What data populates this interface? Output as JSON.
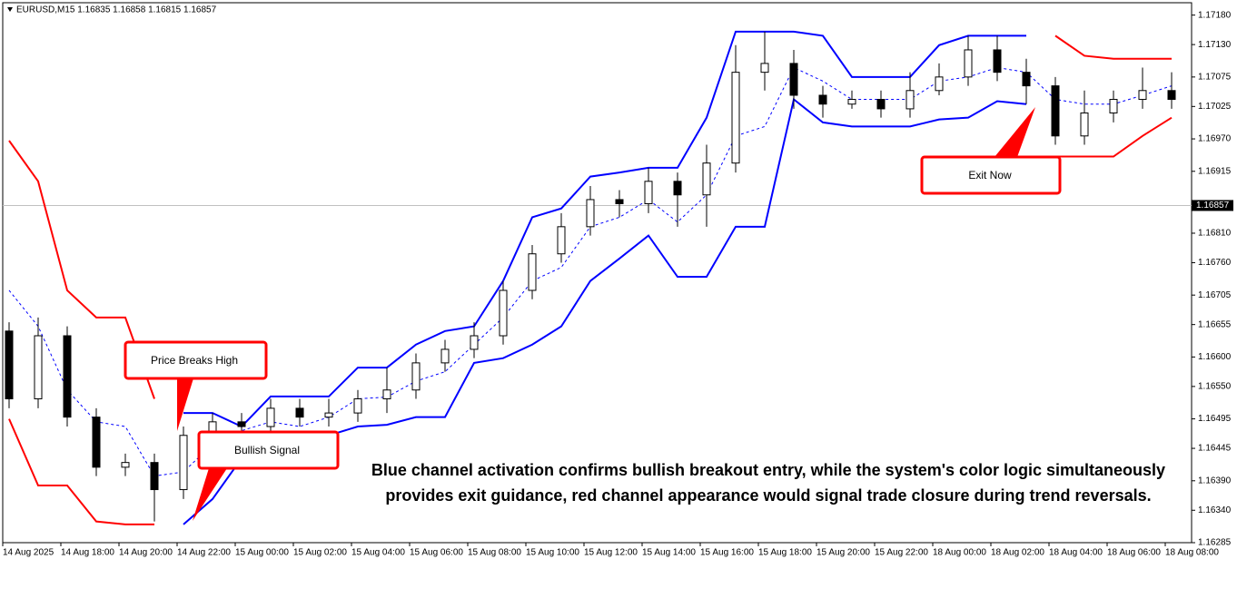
{
  "chart_data": {
    "type": "candlestick",
    "title": "EURUSD,M15  1.16835 1.16858 1.16815 1.16857",
    "x_labels": [
      "14 Aug 2025",
      "14 Aug 18:00",
      "14 Aug 20:00",
      "14 Aug 22:00",
      "15 Aug 00:00",
      "15 Aug 02:00",
      "15 Aug 04:00",
      "15 Aug 06:00",
      "15 Aug 08:00",
      "15 Aug 10:00",
      "15 Aug 12:00",
      "15 Aug 14:00",
      "15 Aug 16:00",
      "15 Aug 18:00",
      "15 Aug 20:00",
      "15 Aug 22:00",
      "18 Aug 00:00",
      "18 Aug 02:00",
      "18 Aug 04:00",
      "18 Aug 06:00",
      "18 Aug 08:00"
    ],
    "ylim": [
      1.16285,
      1.17201
    ],
    "yticks": [
      {
        "value": 1.1718,
        "label": "1.17180"
      },
      {
        "value": 1.1713,
        "label": "1.17130"
      },
      1.17075,
      1.17025,
      {
        "value": 1.1697,
        "label": "1.16970"
      },
      1.16915,
      {
        "value": 1.1681,
        "label": "1.16810"
      },
      {
        "value": 1.1676,
        "label": "1.16760"
      },
      1.16705,
      1.16655,
      {
        "value": 1.166,
        "label": "1.16600"
      },
      {
        "value": 1.1655,
        "label": "1.16550"
      },
      1.16495,
      1.16445,
      {
        "value": 1.1639,
        "label": "1.16390"
      },
      {
        "value": 1.1634,
        "label": "1.16340"
      },
      1.16285
    ],
    "current_price": 1.16857,
    "open": [
      1.16644,
      1.16529,
      1.16636,
      1.16498,
      1.16413,
      1.16421,
      1.16375,
      1.16467,
      1.1649,
      1.16482,
      1.16513,
      1.16498,
      1.16505,
      1.16529,
      1.16544,
      1.1659,
      1.16613,
      1.16636,
      1.16713,
      1.16775,
      1.16821,
      1.16867,
      1.1686,
      1.16898,
      1.16875,
      1.16929,
      1.17083,
      1.17098,
      1.17044,
      1.17029,
      1.17037,
      1.17021,
      1.17052,
      1.17075,
      1.17121,
      1.17083,
      1.1706,
      1.16975,
      1.17014,
      1.17037,
      1.17052
    ],
    "high": [
      1.16659,
      1.16667,
      1.16652,
      1.16513,
      1.16436,
      1.16436,
      1.16482,
      1.16505,
      1.16505,
      1.16529,
      1.16529,
      1.16529,
      1.16544,
      1.16582,
      1.16606,
      1.16629,
      1.16659,
      1.16729,
      1.1679,
      1.16844,
      1.1689,
      1.16883,
      1.16921,
      1.16913,
      1.1696,
      1.17129,
      1.17152,
      1.17121,
      1.1706,
      1.17052,
      1.17052,
      1.17083,
      1.17098,
      1.17145,
      1.17145,
      1.17106,
      1.17075,
      1.17052,
      1.17052,
      1.17091,
      1.17083
    ],
    "low": [
      1.16513,
      1.16513,
      1.16482,
      1.16398,
      1.16398,
      1.16321,
      1.16359,
      1.16452,
      1.16467,
      1.16467,
      1.16482,
      1.16482,
      1.1649,
      1.16505,
      1.16529,
      1.16575,
      1.16598,
      1.16621,
      1.16698,
      1.1676,
      1.16806,
      1.16837,
      1.16844,
      1.16821,
      1.16821,
      1.16913,
      1.17052,
      1.17021,
      1.17006,
      1.17021,
      1.17006,
      1.17006,
      1.17044,
      1.1706,
      1.17068,
      1.17029,
      1.1696,
      1.1696,
      1.16998,
      1.17021,
      1.17021
    ],
    "close": [
      1.16529,
      1.16636,
      1.16498,
      1.16413,
      1.16421,
      1.16375,
      1.16467,
      1.1649,
      1.16482,
      1.16513,
      1.16498,
      1.16505,
      1.16529,
      1.16544,
      1.1659,
      1.16613,
      1.16636,
      1.16713,
      1.16775,
      1.16821,
      1.16867,
      1.1686,
      1.16898,
      1.16875,
      1.16929,
      1.17083,
      1.17098,
      1.17044,
      1.17029,
      1.17037,
      1.17021,
      1.17052,
      1.17075,
      1.17121,
      1.17083,
      1.1706,
      1.16975,
      1.17014,
      1.17037,
      1.17052,
      1.17037
    ],
    "channels": [
      {
        "color": "#ff0000",
        "upper": [
          1.16967,
          1.16898,
          1.16713,
          1.16667,
          1.16667,
          1.16529,
          null,
          null,
          null,
          null,
          null,
          null,
          null,
          null,
          null,
          null,
          null,
          null,
          null,
          null,
          null,
          null,
          null,
          null,
          null,
          null,
          null,
          null,
          null,
          null,
          null,
          null,
          null,
          null,
          null,
          null,
          1.17145,
          1.17111,
          1.17106,
          1.17106,
          1.17106
        ],
        "lower": [
          1.16495,
          1.16382,
          1.16382,
          1.16321,
          1.16316,
          1.16316,
          null,
          null,
          null,
          null,
          null,
          null,
          null,
          null,
          null,
          null,
          null,
          null,
          null,
          null,
          null,
          null,
          null,
          null,
          null,
          null,
          null,
          null,
          null,
          null,
          null,
          null,
          null,
          null,
          null,
          null,
          1.1694,
          1.1694,
          1.1694,
          1.16975,
          1.17006
        ]
      },
      {
        "color": "#0000ff",
        "upper": [
          null,
          null,
          null,
          null,
          null,
          null,
          1.16505,
          1.16505,
          1.16482,
          1.16533,
          1.16533,
          1.16533,
          1.16582,
          1.16582,
          1.16621,
          1.16644,
          1.16652,
          1.16729,
          1.16837,
          1.16852,
          1.16906,
          1.16913,
          1.16921,
          1.16921,
          1.17006,
          1.17152,
          1.17152,
          1.17152,
          1.17145,
          1.17075,
          1.17075,
          1.17075,
          1.17129,
          1.17145,
          1.17145,
          1.17145,
          null,
          null,
          null,
          null,
          null
        ],
        "lower": [
          null,
          null,
          null,
          null,
          null,
          null,
          1.16316,
          1.16359,
          1.16428,
          1.16459,
          1.16462,
          1.16467,
          1.16482,
          1.16485,
          1.16498,
          1.16498,
          1.1659,
          1.16598,
          1.16621,
          1.16652,
          1.16729,
          1.16767,
          1.16806,
          1.16736,
          1.16736,
          1.16821,
          1.16821,
          1.17037,
          1.16998,
          1.16991,
          1.16991,
          1.16991,
          1.17003,
          1.17006,
          1.17034,
          1.17029,
          null,
          null,
          null,
          null,
          null
        ]
      }
    ],
    "middle": {
      "color": "#0000ff",
      "values": [
        1.16713,
        1.16652,
        1.16544,
        1.1649,
        1.16482,
        1.16398,
        1.16405,
        1.16452,
        1.16475,
        1.1649,
        1.16482,
        1.16498,
        1.16529,
        1.16532,
        1.16559,
        1.16575,
        1.16621,
        1.16667,
        1.16729,
        1.16752,
        1.16821,
        1.16837,
        1.16867,
        1.16829,
        1.16875,
        1.16975,
        1.16991,
        1.17091,
        1.17068,
        1.17037,
        1.17037,
        1.17037,
        1.17068,
        1.17075,
        1.17091,
        1.17083,
        1.17037,
        1.17029,
        1.17029,
        1.17044,
        1.1706
      ]
    },
    "annotations": [
      "Price Breaks High",
      "Bullish Signal",
      "Exit Now"
    ],
    "caption": [
      "Blue channel activation confirms bullish breakout entry, while the system's color logic simultaneously",
      "provides exit guidance, red channel appearance would signal trade closure during trend reversals."
    ]
  }
}
